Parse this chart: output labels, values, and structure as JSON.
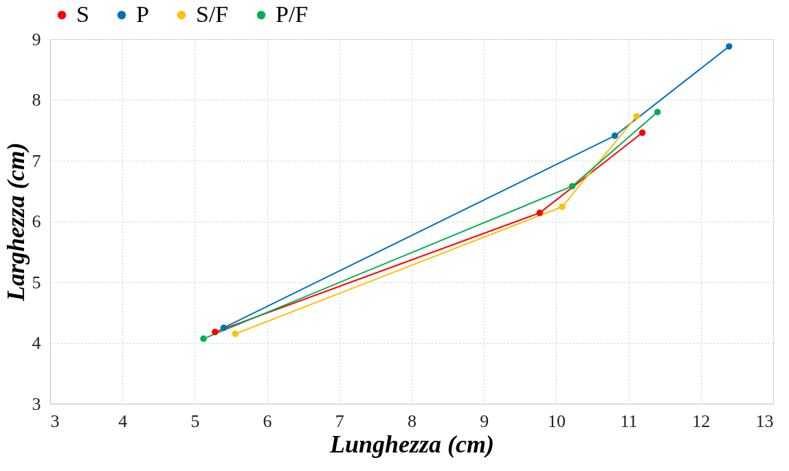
{
  "chart_data": {
    "type": "line",
    "xlabel": "Lunghezza (cm)",
    "ylabel": "Larghezza (cm)",
    "xlim": [
      3,
      13
    ],
    "ylim": [
      3,
      9
    ],
    "xticks": [
      3,
      4,
      5,
      6,
      7,
      8,
      9,
      10,
      11,
      12,
      13
    ],
    "yticks": [
      3,
      4,
      5,
      6,
      7,
      8,
      9
    ],
    "grid": true,
    "legend": "top",
    "marker": "circle",
    "line_style": "solid",
    "series": [
      {
        "name": "S",
        "color": "#ff0000",
        "x": [
          5.28,
          9.77,
          11.19
        ],
        "values": [
          4.18,
          6.14,
          7.46
        ]
      },
      {
        "name": "P",
        "color": "#0070c0",
        "x": [
          5.4,
          10.81,
          12.39
        ],
        "values": [
          4.25,
          7.41,
          8.88
        ]
      },
      {
        "name": "S/F",
        "color": "#ffc000",
        "x": [
          5.56,
          10.08,
          11.11
        ],
        "values": [
          4.15,
          6.24,
          7.73
        ]
      },
      {
        "name": "P/F",
        "color": "#00b050",
        "x": [
          5.12,
          10.22,
          11.4
        ],
        "values": [
          4.07,
          6.58,
          7.8
        ]
      }
    ]
  }
}
